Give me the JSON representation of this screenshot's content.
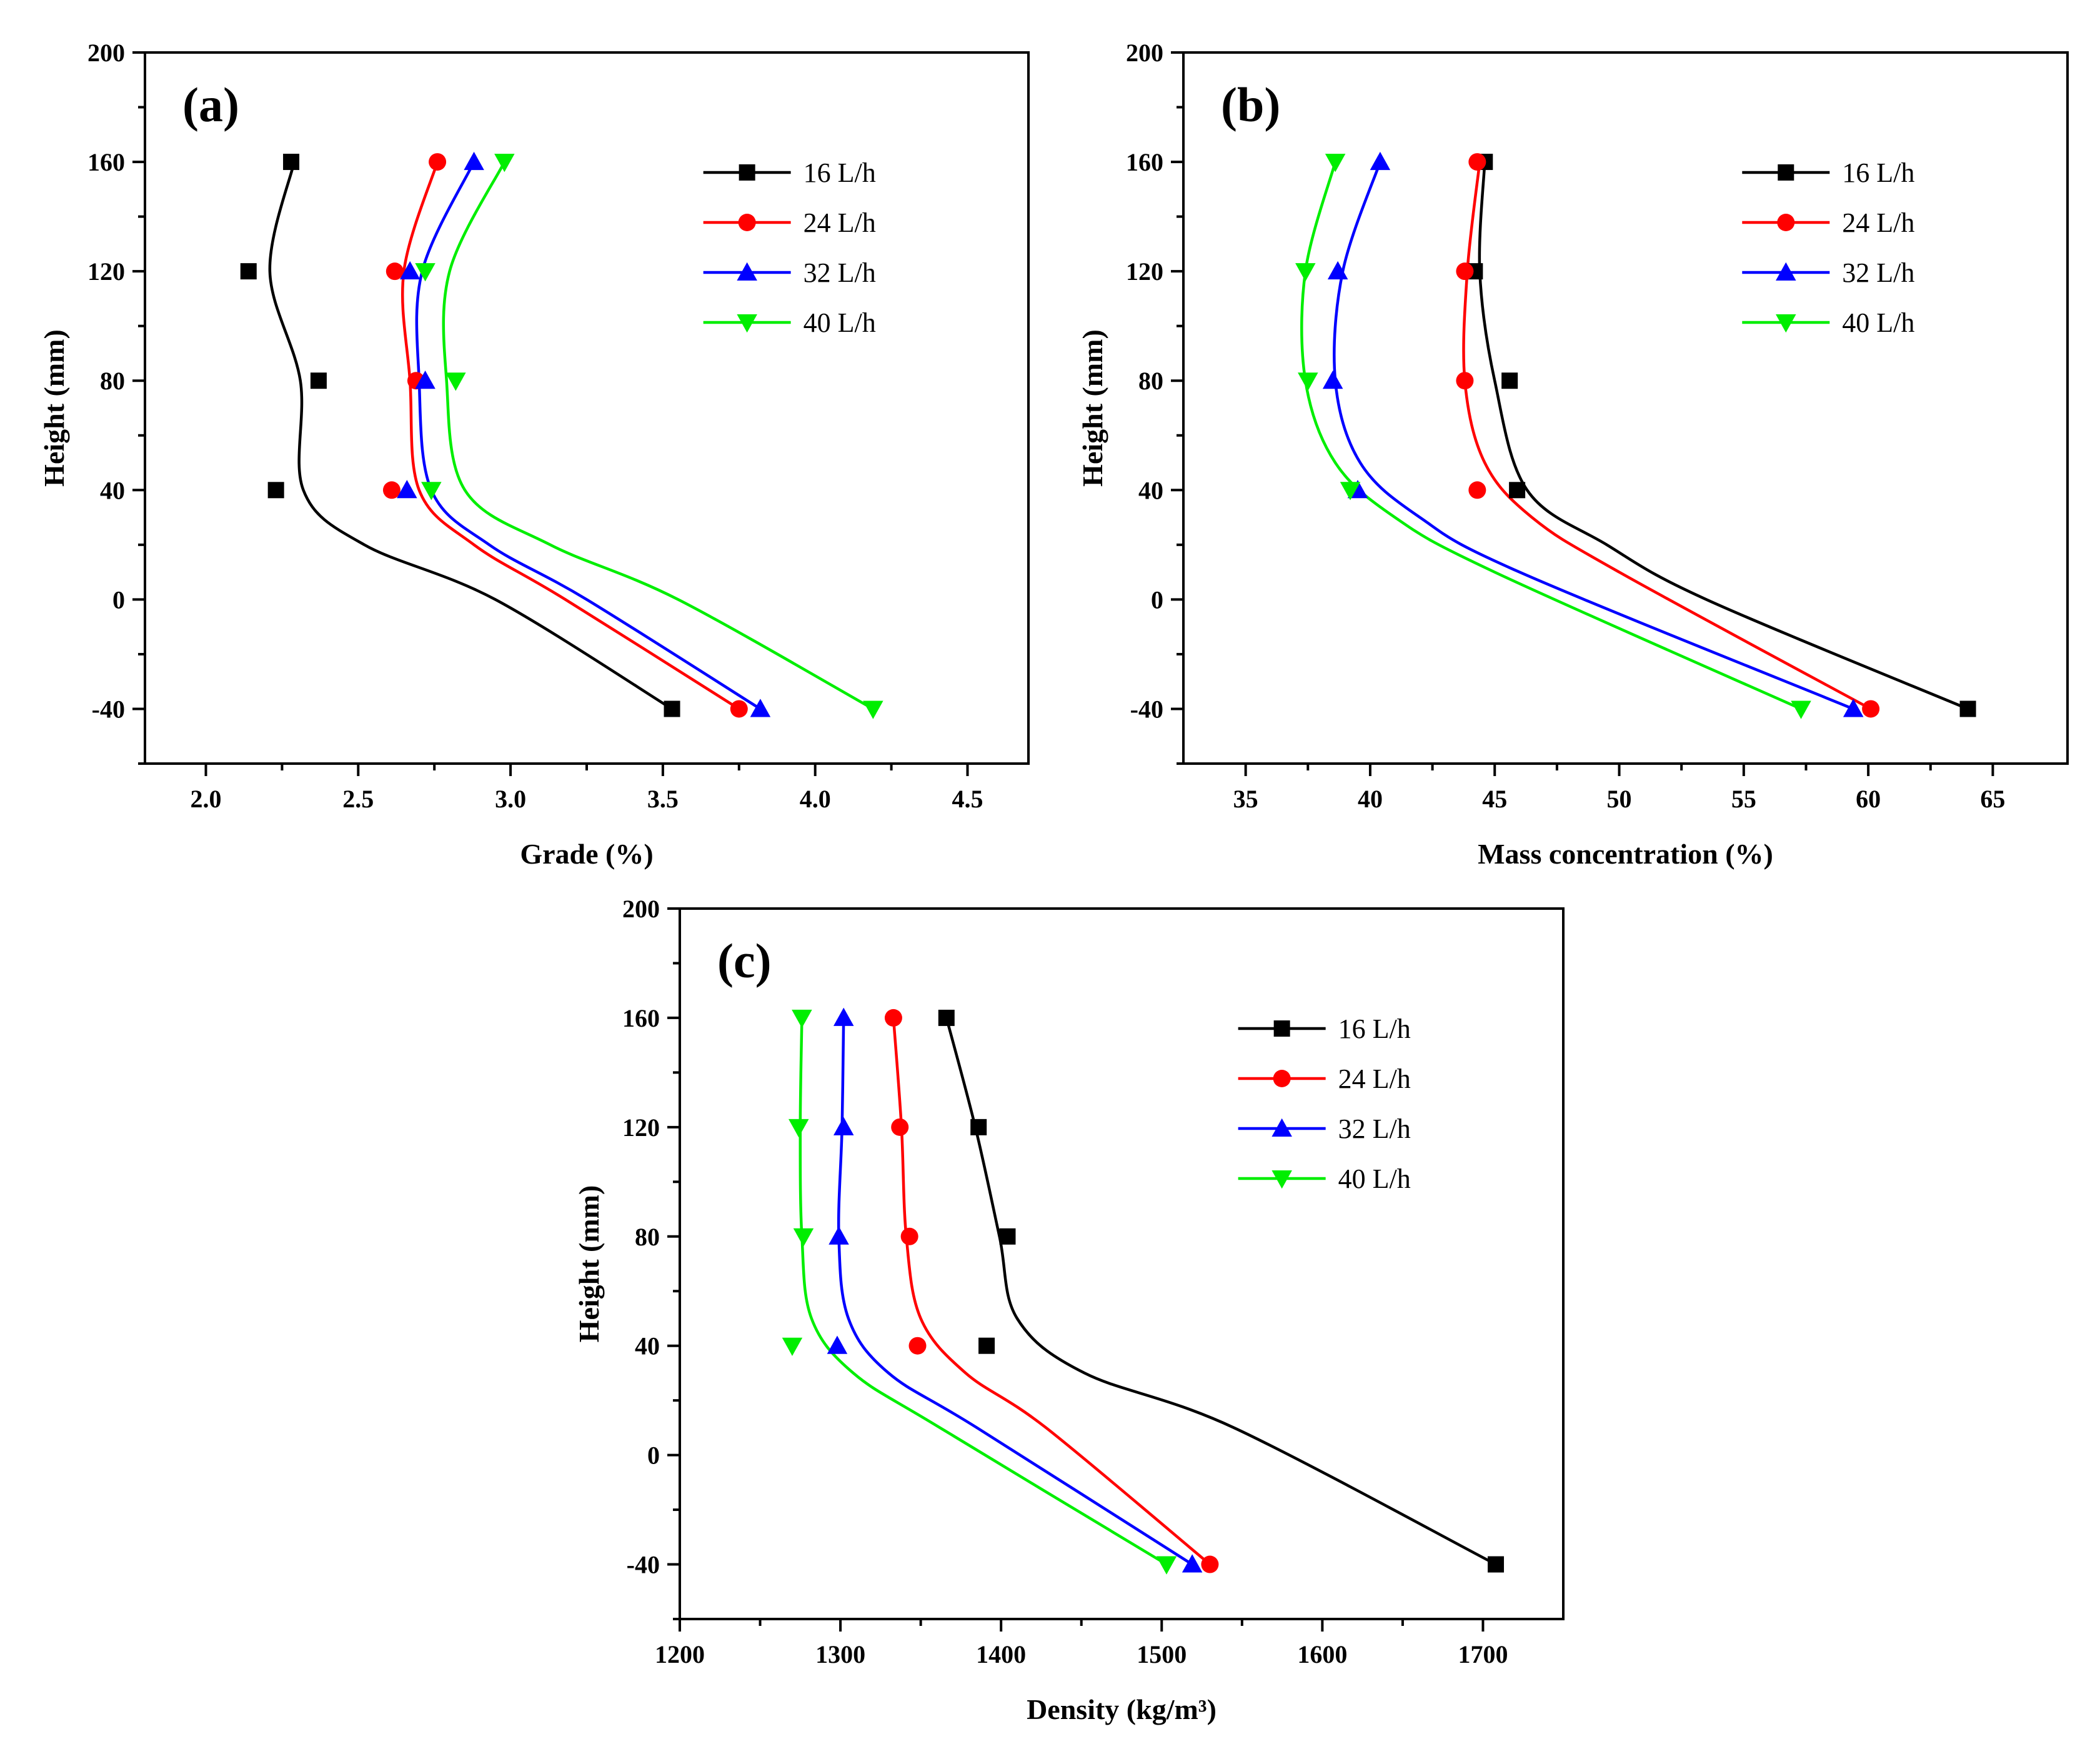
{
  "figure": {
    "series_names": [
      "16 L/h",
      "24 L/h",
      "32 L/h",
      "40 L/h"
    ],
    "series_colors": [
      "#000000",
      "#ff0000",
      "#0000ff",
      "#00ee00"
    ],
    "series_markers": [
      "square",
      "circle",
      "triangle-up",
      "triangle-down"
    ]
  },
  "chart_data": [
    {
      "panel": "(a)",
      "type": "scatter",
      "title": "",
      "xlabel": "Grade (%)",
      "ylabel": "Height (mm)",
      "xlim": [
        1.8,
        4.7
      ],
      "ylim": [
        -60,
        200
      ],
      "xticks": [
        "2.0",
        "2.5",
        "3.0",
        "3.5",
        "4.0",
        "4.5"
      ],
      "yticks": [
        "-40",
        "0",
        "40",
        "80",
        "120",
        "160",
        "200"
      ],
      "legend_position": "top-right",
      "series": [
        {
          "name": "16 L/h",
          "points": [
            [
              2.28,
              160
            ],
            [
              2.14,
              120
            ],
            [
              2.37,
              80
            ],
            [
              2.23,
              40
            ],
            [
              3.53,
              -40
            ]
          ]
        },
        {
          "name": "24 L/h",
          "points": [
            [
              2.76,
              160
            ],
            [
              2.62,
              120
            ],
            [
              2.69,
              80
            ],
            [
              2.61,
              40
            ],
            [
              3.75,
              -40
            ]
          ]
        },
        {
          "name": "32 L/h",
          "points": [
            [
              2.88,
              160
            ],
            [
              2.67,
              120
            ],
            [
              2.72,
              80
            ],
            [
              2.66,
              40
            ],
            [
              3.82,
              -40
            ]
          ]
        },
        {
          "name": "40 L/h",
          "points": [
            [
              2.98,
              160
            ],
            [
              2.72,
              120
            ],
            [
              2.82,
              80
            ],
            [
              2.74,
              40
            ],
            [
              4.19,
              -40
            ]
          ]
        }
      ],
      "fits": [
        {
          "name": "16 L/h",
          "points": [
            [
              2.29,
              160
            ],
            [
              2.21,
              120
            ],
            [
              2.31,
              80
            ],
            [
              2.32,
              40
            ],
            [
              2.52,
              20
            ],
            [
              2.95,
              0
            ],
            [
              3.53,
              -40
            ]
          ]
        },
        {
          "name": "24 L/h",
          "points": [
            [
              2.76,
              160
            ],
            [
              2.65,
              120
            ],
            [
              2.67,
              80
            ],
            [
              2.7,
              40
            ],
            [
              2.88,
              20
            ],
            [
              3.18,
              0
            ],
            [
              3.75,
              -40
            ]
          ]
        },
        {
          "name": "32 L/h",
          "points": [
            [
              2.88,
              160
            ],
            [
              2.71,
              120
            ],
            [
              2.7,
              80
            ],
            [
              2.74,
              40
            ],
            [
              2.93,
              20
            ],
            [
              3.25,
              0
            ],
            [
              3.82,
              -40
            ]
          ]
        },
        {
          "name": "40 L/h",
          "points": [
            [
              2.98,
              160
            ],
            [
              2.8,
              120
            ],
            [
              2.79,
              80
            ],
            [
              2.85,
              40
            ],
            [
              3.13,
              20
            ],
            [
              3.55,
              0
            ],
            [
              4.19,
              -40
            ]
          ]
        }
      ]
    },
    {
      "panel": "(b)",
      "type": "scatter",
      "title": "",
      "xlabel": "Mass concentration (%)",
      "ylabel": "Height (mm)",
      "xlim": [
        32.5,
        68
      ],
      "ylim": [
        -60,
        200
      ],
      "xticks": [
        "35",
        "40",
        "45",
        "50",
        "55",
        "60",
        "65"
      ],
      "yticks": [
        "-40",
        "0",
        "40",
        "80",
        "120",
        "160",
        "200"
      ],
      "legend_position": "top-right",
      "series": [
        {
          "name": "16 L/h",
          "points": [
            [
              44.6,
              160
            ],
            [
              44.2,
              120
            ],
            [
              45.6,
              80
            ],
            [
              45.9,
              40
            ],
            [
              64.0,
              -40
            ]
          ]
        },
        {
          "name": "24 L/h",
          "points": [
            [
              44.3,
              160
            ],
            [
              43.8,
              120
            ],
            [
              43.8,
              80
            ],
            [
              44.3,
              40
            ],
            [
              60.1,
              -40
            ]
          ]
        },
        {
          "name": "32 L/h",
          "points": [
            [
              40.4,
              160
            ],
            [
              38.7,
              120
            ],
            [
              38.5,
              80
            ],
            [
              39.5,
              40
            ],
            [
              59.4,
              -40
            ]
          ]
        },
        {
          "name": "40 L/h",
          "points": [
            [
              38.6,
              160
            ],
            [
              37.4,
              120
            ],
            [
              37.5,
              80
            ],
            [
              39.2,
              40
            ],
            [
              57.3,
              -40
            ]
          ]
        }
      ],
      "fits": [
        {
          "name": "16 L/h",
          "points": [
            [
              44.6,
              160
            ],
            [
              44.4,
              120
            ],
            [
              45.0,
              80
            ],
            [
              46.3,
              40
            ],
            [
              49.5,
              20
            ],
            [
              53.5,
              0
            ],
            [
              64.0,
              -40
            ]
          ]
        },
        {
          "name": "24 L/h",
          "points": [
            [
              44.4,
              160
            ],
            [
              43.9,
              120
            ],
            [
              43.8,
              80
            ],
            [
              44.6,
              50
            ],
            [
              46.5,
              30
            ],
            [
              50.0,
              10
            ],
            [
              60.1,
              -40
            ]
          ]
        },
        {
          "name": "32 L/h",
          "points": [
            [
              40.4,
              160
            ],
            [
              38.9,
              120
            ],
            [
              38.6,
              80
            ],
            [
              39.6,
              50
            ],
            [
              42.0,
              30
            ],
            [
              46.0,
              10
            ],
            [
              59.4,
              -40
            ]
          ]
        },
        {
          "name": "40 L/h",
          "points": [
            [
              38.6,
              160
            ],
            [
              37.4,
              120
            ],
            [
              37.4,
              80
            ],
            [
              38.6,
              50
            ],
            [
              41.0,
              30
            ],
            [
              45.0,
              10
            ],
            [
              57.3,
              -40
            ]
          ]
        }
      ]
    },
    {
      "panel": "(c)",
      "type": "scatter",
      "title": "",
      "xlabel": "Density (kg/m³)",
      "ylabel": "Height (mm)",
      "xlim": [
        1200,
        1750
      ],
      "ylim": [
        -60,
        200
      ],
      "xticks": [
        "1200",
        "1300",
        "1400",
        "1500",
        "1600",
        "1700"
      ],
      "yticks": [
        "-40",
        "0",
        "40",
        "80",
        "120",
        "160",
        "200"
      ],
      "legend_position": "top-right",
      "series": [
        {
          "name": "16 L/h",
          "points": [
            [
              1366,
              160
            ],
            [
              1386,
              120
            ],
            [
              1404,
              80
            ],
            [
              1391,
              40
            ],
            [
              1708,
              -40
            ]
          ]
        },
        {
          "name": "24 L/h",
          "points": [
            [
              1333,
              160
            ],
            [
              1337,
              120
            ],
            [
              1343,
              80
            ],
            [
              1348,
              40
            ],
            [
              1530,
              -40
            ]
          ]
        },
        {
          "name": "32 L/h",
          "points": [
            [
              1302,
              160
            ],
            [
              1302,
              120
            ],
            [
              1299,
              80
            ],
            [
              1298,
              40
            ],
            [
              1519,
              -40
            ]
          ]
        },
        {
          "name": "40 L/h",
          "points": [
            [
              1276,
              160
            ],
            [
              1274,
              120
            ],
            [
              1277,
              80
            ],
            [
              1270,
              40
            ],
            [
              1503,
              -40
            ]
          ]
        }
      ],
      "fits": [
        {
          "name": "16 L/h",
          "points": [
            [
              1366,
              160
            ],
            [
              1384,
              120
            ],
            [
              1399,
              80
            ],
            [
              1410,
              50
            ],
            [
              1452,
              30
            ],
            [
              1545,
              10
            ],
            [
              1708,
              -40
            ]
          ]
        },
        {
          "name": "24 L/h",
          "points": [
            [
              1333,
              160
            ],
            [
              1338,
              120
            ],
            [
              1341,
              80
            ],
            [
              1350,
              50
            ],
            [
              1378,
              30
            ],
            [
              1428,
              10
            ],
            [
              1530,
              -40
            ]
          ]
        },
        {
          "name": "32 L/h",
          "points": [
            [
              1302,
              160
            ],
            [
              1301,
              120
            ],
            [
              1299,
              80
            ],
            [
              1305,
              50
            ],
            [
              1330,
              30
            ],
            [
              1385,
              10
            ],
            [
              1519,
              -40
            ]
          ]
        },
        {
          "name": "40 L/h",
          "points": [
            [
              1276,
              160
            ],
            [
              1275,
              120
            ],
            [
              1276,
              80
            ],
            [
              1282,
              50
            ],
            [
              1308,
              30
            ],
            [
              1362,
              10
            ],
            [
              1503,
              -40
            ]
          ]
        }
      ]
    }
  ]
}
